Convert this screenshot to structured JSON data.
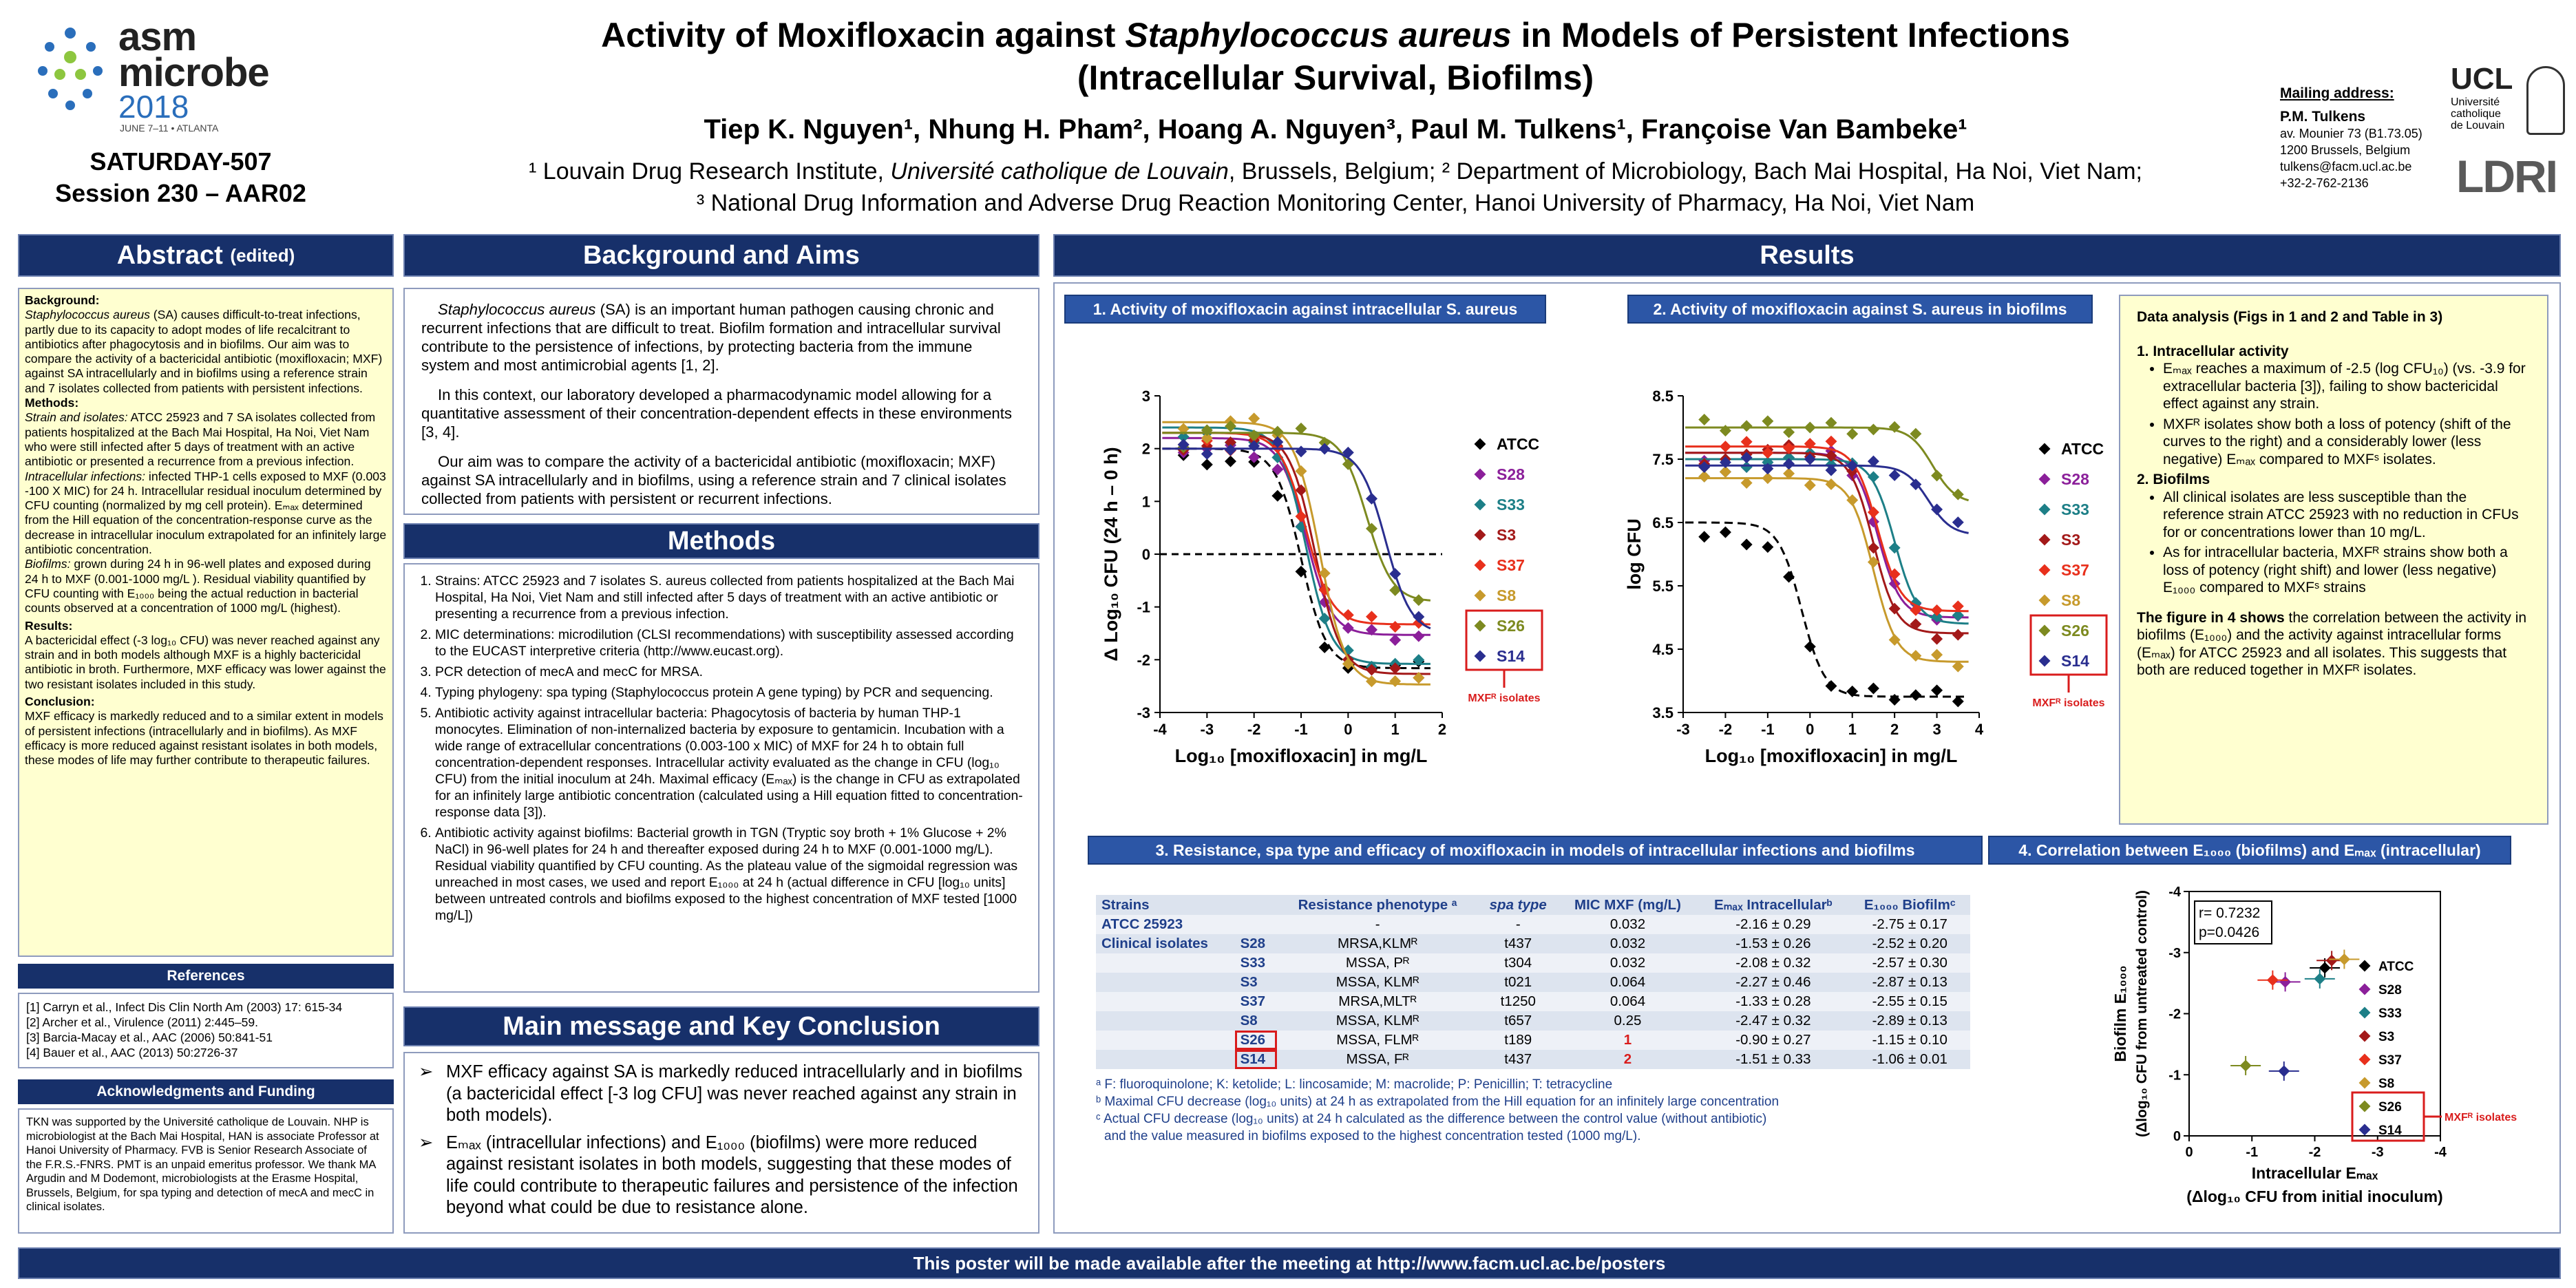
{
  "header": {
    "logo_line1": "asm",
    "logo_line2": "microbe",
    "logo_year": "2018",
    "logo_date": "JUNE 7–11 • ATLANTA",
    "session_code": "SATURDAY-507",
    "session": "Session 230 – AAR02",
    "title_pre": "Activity of Moxifloxacin against ",
    "title_species": "Staphylococcus aureus",
    "title_post": " in Models of Persistent Infections",
    "title_line2": "(Intracellular Survival, Biofilms)",
    "authors": "Tiep K. Nguyen¹, Nhung H. Pham², Hoang A. Nguyen³, Paul M. Tulkens¹, Françoise Van Bambeke¹",
    "aff1_pre": "¹ Louvain Drug Research Institute, ",
    "aff1_it": "Université catholique de Louvain",
    "aff1_post": ", Brussels, Belgium; ² Department of Microbiology, Bach Mai Hospital, Ha Noi, Viet Nam;",
    "aff2": "³ National Drug Information and Adverse Drug Reaction Monitoring Center, Hanoi University of Pharmacy, Ha Noi, Viet Nam",
    "mail_title": "Mailing address:",
    "mail_name": "P.M. Tulkens",
    "mail_l1": "av. Mounier 73 (B1.73.05)",
    "mail_l2": "1200 Brussels, Belgium",
    "mail_l3": "tulkens@facm.ucl.ac.be",
    "mail_l4": "+32-2-762-2136",
    "ucl": "UCL",
    "ucl_sub1": "Université",
    "ucl_sub2": "catholique",
    "ucl_sub3": "de Louvain",
    "ldri": "LDRI"
  },
  "sections": {
    "abstract": "Abstract",
    "abstract_suffix": "(edited)",
    "background": "Background and Aims",
    "methods": "Methods",
    "main": "Main message and Key Conclusion",
    "results": "Results",
    "references": "References",
    "ack": "Acknowledgments and Funding",
    "footer": "This poster will be made available after the meeting at http://www.facm.ucl.ac.be/posters"
  },
  "abstract": {
    "bg_h": "Background:",
    "bg_t1": "Staphylococcus aureus",
    "bg_t2": " (SA) causes difficult-to-treat infections, partly due to its capacity to adopt modes of life recalcitrant to antibiotics after phagocytosis and in biofilms. Our aim was to compare the activity of a bactericidal antibiotic (moxifloxacin; MXF) against SA intracellularly and in biofilms using a reference strain and 7 isolates collected from patients with persistent infections.",
    "m_h": "Methods:",
    "m_s_h": "Strain and isolates:",
    "m_s": " ATCC 25923 and 7 SA isolates collected from patients hospitalized at the Bach Mai Hospital, Ha Noi, Viet Nam who were still infected after 5 days of treatment with an active antibiotic or presented a recurrence from a previous infection.",
    "m_i_h": "Intracellular infections:",
    "m_i": " infected THP-1 cells exposed to MXF (0.003 -100 X MIC) for 24 h. Intracellular residual inoculum determined by CFU counting (normalized by mg cell protein). Eₘₐₓ determined from the Hill equation of the concentration-response curve as the decrease in intracellular inoculum extrapolated for an infinitely large antibiotic concentration.",
    "m_b_h": "Biofilms:",
    "m_b": " grown during 24 h in 96-well plates and exposed during 24 h to  MXF (0.001-1000 mg/L ). Residual viability quantified by CFU counting with E₁₀₀₀ being the actual reduction in bacterial counts observed at  a concentration of 1000 mg/L (highest).",
    "r_h": "Results:",
    "r": "A bactericidal effect (-3 log₁₀ CFU) was never reached against any strain and in both models although MXF is a highly bactericidal antibiotic in broth. Furthermore, MXF efficacy was lower against the two resistant isolates included in this study.",
    "c_h": "Conclusion:",
    "c": "MXF efficacy is markedly reduced and to a similar extent in models of persistent infections (intracellularly and in biofilms). As MXF efficacy is more reduced against resistant isolates in both models, these modes of life may further contribute to therapeutic failures."
  },
  "references": [
    "[1] Carryn et al., Infect Dis Clin North Am (2003) 17: 615-34",
    "[2] Archer et al.,  Virulence (2011) 2:445–59.",
    "[3] Barcia-Macay et al., AAC (2006) 50:841-51",
    "[4] Bauer et al., AAC (2013) 50:2726-37"
  ],
  "ack": "TKN was supported by the Université catholique de Louvain. NHP is microbiologist at the Bach Mai Hospital, HAN is associate Professor at Hanoi University of Pharmacy. FVB is Senior Research Associate of the F.R.S.-FNRS. PMT is an unpaid emeritus professor.  We thank MA Argudin and M Dodemont, microbiologists at the Erasme Hospital, Brussels, Belgium, for spa typing and detection of mecA and mecC in clinical isolates.",
  "background": {
    "p1_it": "Staphylococcus aureus",
    "p1": " (SA) is an important human pathogen causing chronic and recurrent  infections that are difficult to treat. Biofilm formation and intracellular survival contribute to the persistence of infections, by protecting bacteria from the immune system and most antimicrobial agents [1, 2].",
    "p2": "In this context, our laboratory developed a pharmacodynamic model allowing for a quantitative assessment of their concentration-dependent effects in these environments [3, 4].",
    "p3": "Our aim was to compare the activity of a bactericidal antibiotic (moxifloxacin; MXF) against SA intracellularly and in biofilms, using a reference strain and 7 clinical isolates collected from patients with persistent or recurrent infections."
  },
  "methods": [
    "Strains:  ATCC 25923 and 7 isolates S. aureus collected from patients hospitalized at the Bach Mai Hospital, Ha Noi, Viet Nam and still infected after 5 days of treatment with an active antibiotic or presenting a recurrence from a previous infection.",
    "MIC determinations: microdilution (CLSI recommendations) with susceptibility assessed according to the EUCAST interpretive criteria (http://www.eucast.org).",
    "PCR detection of mecA and mecC for MRSA.",
    "Typing phylogeny: spa typing (Staphylococcus protein A gene typing) by PCR and sequencing.",
    "Antibiotic activity against intracellular bacteria:  Phagocytosis of bacteria by human THP-1 monocytes. Elimination of non-internalized bacteria by exposure to gentamicin. Incubation with a wide range of extracellular concentrations (0.003-100 x MIC) of MXF for 24 h to obtain full concentration-dependent responses. Intracellular activity evaluated as the change in CFU (log₁₀ CFU) from the initial inoculum at 24h. Maximal efficacy (Eₘₐₓ) is the change in CFU as extrapolated for an infinitely large antibiotic concentration (calculated using a Hill equation fitted to concentration-response data [3]).",
    "Antibiotic activity against biofilms: Bacterial growth in TGN (Tryptic soy broth + 1% Glucose + 2% NaCl) in 96-well plates for 24 h and thereafter exposed during 24 h to MXF (0.001-1000 mg/L). Residual viability quantified by CFU counting. As the plateau value of the sigmoidal regression was unreached in most cases, we used and report E₁₀₀₀ at 24 h (actual difference in CFU [log₁₀ units] between untreated controls and biofilms exposed to the highest concentration of MXF tested [1000 mg/L])"
  ],
  "main": [
    "MXF efficacy against SA is markedly reduced intracellularly and in biofilms (a bactericidal effect [-3 log CFU] was never reached against any strain in both models).",
    "Eₘₐₓ (intracellular infections) and E₁₀₀₀ (biofilms) were more reduced against resistant isolates in both models, suggesting that these modes of life could contribute to therapeutic failures and persistence of the infection beyond what could be due to resistance alone."
  ],
  "panels": {
    "p1": "1. Activity of moxifloxacin against intracellular S. aureus",
    "p2": "2. Activity of moxifloxacin against S. aureus in biofilms",
    "p3": "3. Resistance, spa type and efficacy of moxifloxacin in models of intracellular infections and biofilms",
    "p4": "4. Correlation between E₁₀₀₀ (biofilms) and Eₘₐₓ (intracellular)"
  },
  "analysis": {
    "title": "Data analysis (Figs in 1 and 2 and Table in 3)",
    "h1": "1. Intracellular activity",
    "i1": "Eₘₐₓ reaches a maximum of -2.5 (log CFU₁₀) (vs. -3.9 for extracellular bacteria [3]), failing to show bactericidal effect against any strain.",
    "i2": "MXFᴿ isolates show both a loss of potency (shift of the curves to the right) and a considerably lower (less negative) Eₘₐₓ compared to MXFˢ isolates.",
    "h2": "2. Biofilms",
    "i3": "All clinical isolates are less susceptible than the reference strain ATCC 25923 with no reduction in CFUs for or concentrations lower than 10 mg/L.",
    "i4": "As for intracellular bacteria, MXFᴿ strains show both a loss of potency (right shift) and lower (less negative) E₁₀₀₀ compared to MXFˢ strains",
    "fig_bold": "The figure in 4 shows",
    "fig": " the correlation between the activity in biofilms (E₁₀₀₀) and the activity against intracellular forms (Eₘₐₓ) for ATCC 25923 and all isolates.  This suggests that both are reduced together in MXFᴿ isolates."
  },
  "table": {
    "headers": [
      "Strains",
      "",
      "Resistance phenotype ᵃ",
      "spa type",
      "MIC MXF (mg/L)",
      "Eₘₐₓ Intracellularᵇ",
      "E₁₀₀₀ Biofilmᶜ"
    ],
    "clinical_label": "Clinical isolates",
    "rows": [
      [
        "ATCC 25923",
        "",
        "-",
        "-",
        "0.032",
        "-2.16 ± 0.29",
        "-2.75 ± 0.17"
      ],
      [
        "",
        "S28",
        "MRSA,KLMᴿ",
        "t437",
        "0.032",
        "-1.53 ± 0.26",
        "-2.52 ± 0.20"
      ],
      [
        "",
        "S33",
        "MSSA, Pᴿ",
        "t304",
        "0.032",
        "-2.08 ± 0.32",
        "-2.57 ± 0.30"
      ],
      [
        "",
        "S3",
        "MSSA, KLMᴿ",
        "t021",
        "0.064",
        "-2.27 ± 0.46",
        "-2.87 ± 0.13"
      ],
      [
        "",
        "S37",
        "MRSA,MLTᴿ",
        "t1250",
        "0.064",
        "-1.33 ± 0.28",
        "-2.55 ± 0.15"
      ],
      [
        "",
        "S8",
        "MSSA, KLMᴿ",
        "t657",
        "0.25",
        "-2.47 ± 0.32",
        "-2.89 ± 0.13"
      ],
      [
        "",
        "S26",
        "MSSA, FLMᴿ",
        "t189",
        "1",
        "-0.90 ± 0.27",
        "-1.15 ± 0.10"
      ],
      [
        "",
        "S14",
        "MSSA, Fᴿ",
        "t437",
        "2",
        "-1.51 ± 0.33",
        "-1.06 ± 0.01"
      ]
    ],
    "foot_a": "ᵃ F: fluoroquinolone; K: ketolide; L: lincosamide; M: macrolide; P: Penicillin; T: tetracycline",
    "foot_b": "ᵇ Maximal CFU decrease (log₁₀ units) at 24 h as extrapolated from the Hill equation for an infinitely large concentration",
    "foot_c1": "ᶜ Actual CFU decrease (log₁₀ units) at 24 h calculated as the difference between the control value (without antibiotic)",
    "foot_c2": "and the value measured in biofilms exposed to the highest concentration tested (1000 mg/L)."
  },
  "legend": [
    "ATCC",
    "S28",
    "S33",
    "S3",
    "S37",
    "S8",
    "S26",
    "S14"
  ],
  "legend_colors": [
    "#000000",
    "#8b1f9a",
    "#1d7f87",
    "#a31919",
    "#e8301c",
    "#c79a2c",
    "#7d8a20",
    "#2a2e8f"
  ],
  "mxfr_label": "MXFᴿ isolates",
  "chart_data": [
    {
      "type": "line",
      "title": "",
      "xlabel": "Log₁₀ [moxifloxacin] in mg/L",
      "ylabel": "Δ Log₁₀ CFU (24 h – 0 h)",
      "xlim": [
        -4,
        2
      ],
      "ylim": [
        -3,
        3
      ],
      "xticks": [
        -4,
        -3,
        -2,
        -1,
        0,
        1,
        2
      ],
      "yticks": [
        -3,
        -2,
        -1,
        0,
        1,
        2,
        3
      ],
      "series": [
        {
          "name": "ATCC",
          "top": 2.0,
          "bottom": -2.16,
          "ec50": -1.0
        },
        {
          "name": "S28",
          "top": 2.2,
          "bottom": -1.53,
          "ec50": -0.9
        },
        {
          "name": "S33",
          "top": 2.4,
          "bottom": -2.08,
          "ec50": -0.9
        },
        {
          "name": "S3",
          "top": 2.3,
          "bottom": -2.27,
          "ec50": -0.7
        },
        {
          "name": "S37",
          "top": 2.3,
          "bottom": -1.33,
          "ec50": -0.9
        },
        {
          "name": "S8",
          "top": 2.5,
          "bottom": -2.47,
          "ec50": -0.6
        },
        {
          "name": "S26",
          "top": 2.3,
          "bottom": -0.9,
          "ec50": 0.4
        },
        {
          "name": "S14",
          "top": 2.0,
          "bottom": -1.51,
          "ec50": 0.8
        }
      ]
    },
    {
      "type": "line",
      "title": "",
      "xlabel": "Log₁₀ [moxifloxacin] in mg/L",
      "ylabel": "log CFU",
      "xlim": [
        -3,
        4
      ],
      "ylim": [
        3.5,
        8.5
      ],
      "xticks": [
        -3,
        -2,
        -1,
        0,
        1,
        2,
        3,
        4
      ],
      "yticks": [
        3.5,
        4.5,
        5.5,
        6.5,
        7.5,
        8.5
      ],
      "series": [
        {
          "name": "ATCC",
          "top": 6.5,
          "bottom": 3.75,
          "ec50": -0.2
        },
        {
          "name": "S28",
          "top": 7.6,
          "bottom": 5.0,
          "ec50": 1.6
        },
        {
          "name": "S33",
          "top": 7.5,
          "bottom": 4.9,
          "ec50": 2.0
        },
        {
          "name": "S3",
          "top": 7.6,
          "bottom": 4.75,
          "ec50": 1.5
        },
        {
          "name": "S37",
          "top": 7.7,
          "bottom": 5.1,
          "ec50": 1.6
        },
        {
          "name": "S8",
          "top": 7.2,
          "bottom": 4.3,
          "ec50": 1.5
        },
        {
          "name": "S26",
          "top": 8.0,
          "bottom": 6.8,
          "ec50": 2.9
        },
        {
          "name": "S14",
          "top": 7.4,
          "bottom": 6.3,
          "ec50": 2.8
        }
      ]
    },
    {
      "type": "scatter",
      "title": "",
      "xlabel": "Intracellular Eₘₐₓ",
      "xlabel2": "(Δlog₁₀ CFU from initial inoculum)",
      "ylabel": "Biofilm E₁₀₀₀",
      "ylabel2": "(Δlog₁₀  CFU from untreated control)",
      "xlim": [
        0,
        -4
      ],
      "ylim": [
        0,
        -4
      ],
      "xticks": [
        0,
        -1,
        -2,
        -3,
        -4
      ],
      "yticks": [
        0,
        -1,
        -2,
        -3,
        -4
      ],
      "r": "r= 0.7232",
      "p": "p=0.0426",
      "points": [
        {
          "name": "ATCC",
          "x": -2.16,
          "y": -2.75
        },
        {
          "name": "S28",
          "x": -1.53,
          "y": -2.52
        },
        {
          "name": "S33",
          "x": -2.08,
          "y": -2.57
        },
        {
          "name": "S3",
          "x": -2.27,
          "y": -2.87
        },
        {
          "name": "S37",
          "x": -1.33,
          "y": -2.55
        },
        {
          "name": "S8",
          "x": -2.47,
          "y": -2.89
        },
        {
          "name": "S26",
          "x": -0.9,
          "y": -1.15
        },
        {
          "name": "S14",
          "x": -1.51,
          "y": -1.06
        }
      ]
    }
  ]
}
